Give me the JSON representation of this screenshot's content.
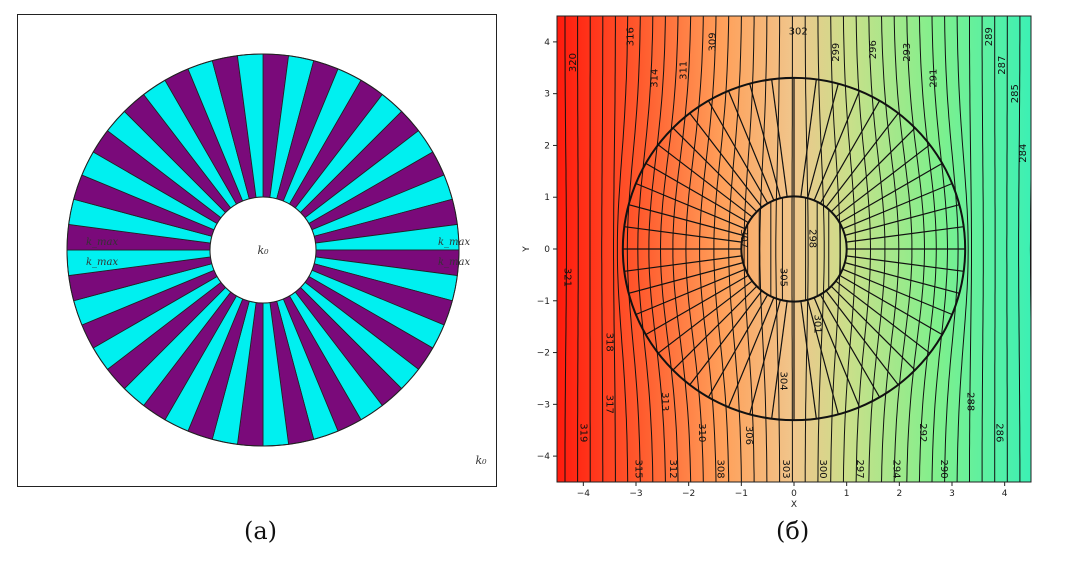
{
  "panel_a": {
    "caption": "(а)",
    "labels": {
      "center": "k₀",
      "corner": "k₀",
      "left_upper": "k_max",
      "left_lower": "k_max",
      "right_upper": "k_max",
      "right_lower": "k_max"
    },
    "sectors": {
      "count": 48,
      "colors": [
        "#7a0a7a",
        "#00f0f0"
      ]
    }
  },
  "panel_b": {
    "caption": "(б)",
    "x_axis_label": "X",
    "y_axis_label": "Y",
    "x_ticks": [
      "−4",
      "−3",
      "−2",
      "−1",
      "0",
      "1",
      "2",
      "3",
      "4"
    ],
    "y_ticks": [
      "4",
      "3",
      "2",
      "1",
      "0",
      "−1",
      "−2",
      "−3",
      "−4"
    ],
    "x_range": [
      -4.5,
      4.5
    ],
    "y_range": [
      -4.5,
      4.5
    ],
    "colormap": "rainbow",
    "contour_labels": [
      {
        "text": "320",
        "x": -4.2,
        "y": 3.6,
        "rot": -90
      },
      {
        "text": "316",
        "x": -3.1,
        "y": 4.1,
        "rot": -90
      },
      {
        "text": "314",
        "x": -2.65,
        "y": 3.3,
        "rot": -90
      },
      {
        "text": "311",
        "x": -2.1,
        "y": 3.45,
        "rot": -90
      },
      {
        "text": "309",
        "x": -1.55,
        "y": 4.0,
        "rot": -90
      },
      {
        "text": "302",
        "x": 0.08,
        "y": 4.2,
        "rot": 0
      },
      {
        "text": "299",
        "x": 0.8,
        "y": 3.8,
        "rot": -90
      },
      {
        "text": "296",
        "x": 1.5,
        "y": 3.85,
        "rot": -90
      },
      {
        "text": "293",
        "x": 2.15,
        "y": 3.8,
        "rot": -90
      },
      {
        "text": "291",
        "x": 2.65,
        "y": 3.3,
        "rot": -90
      },
      {
        "text": "289",
        "x": 3.7,
        "y": 4.1,
        "rot": -90
      },
      {
        "text": "287",
        "x": 3.95,
        "y": 3.55,
        "rot": -90
      },
      {
        "text": "285",
        "x": 4.2,
        "y": 3.0,
        "rot": -90
      },
      {
        "text": "284",
        "x": 4.35,
        "y": 1.85,
        "rot": -90
      },
      {
        "text": "321",
        "x": -4.3,
        "y": -0.55,
        "rot": 90
      },
      {
        "text": "307",
        "x": -0.95,
        "y": 0.2,
        "rot": 90
      },
      {
        "text": "298",
        "x": 0.35,
        "y": 0.2,
        "rot": 90
      },
      {
        "text": "305",
        "x": -0.2,
        "y": -0.55,
        "rot": 90
      },
      {
        "text": "301",
        "x": 0.45,
        "y": -1.45,
        "rot": 90
      },
      {
        "text": "304",
        "x": -0.2,
        "y": -2.55,
        "rot": 90
      },
      {
        "text": "318",
        "x": -3.5,
        "y": -1.8,
        "rot": 90
      },
      {
        "text": "317",
        "x": -3.5,
        "y": -3.0,
        "rot": 90
      },
      {
        "text": "313",
        "x": -2.45,
        "y": -2.95,
        "rot": 90
      },
      {
        "text": "319",
        "x": -4.0,
        "y": -3.55,
        "rot": 90
      },
      {
        "text": "315",
        "x": -2.95,
        "y": -4.25,
        "rot": 90
      },
      {
        "text": "312",
        "x": -2.3,
        "y": -4.25,
        "rot": 90
      },
      {
        "text": "310",
        "x": -1.75,
        "y": -3.55,
        "rot": 90
      },
      {
        "text": "308",
        "x": -1.4,
        "y": -4.25,
        "rot": 90
      },
      {
        "text": "306",
        "x": -0.85,
        "y": -3.6,
        "rot": 90
      },
      {
        "text": "303",
        "x": -0.15,
        "y": -4.25,
        "rot": 90
      },
      {
        "text": "300",
        "x": 0.55,
        "y": -4.25,
        "rot": 90
      },
      {
        "text": "297",
        "x": 1.25,
        "y": -4.25,
        "rot": 90
      },
      {
        "text": "294",
        "x": 1.95,
        "y": -4.25,
        "rot": 90
      },
      {
        "text": "292",
        "x": 2.45,
        "y": -3.55,
        "rot": 90
      },
      {
        "text": "290",
        "x": 2.85,
        "y": -4.25,
        "rot": 90
      },
      {
        "text": "288",
        "x": 3.35,
        "y": -2.95,
        "rot": 90
      },
      {
        "text": "286",
        "x": 3.9,
        "y": -3.55,
        "rot": 90
      }
    ]
  }
}
